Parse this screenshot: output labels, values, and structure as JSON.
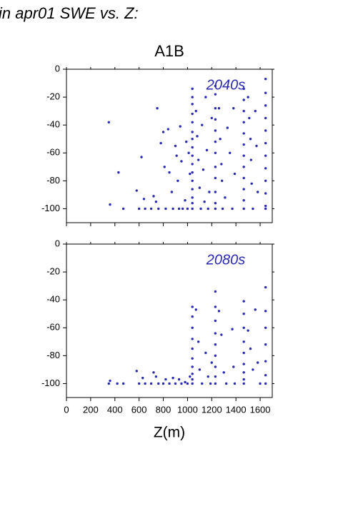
{
  "title": "in apr01 SWE vs. Z:",
  "subtitle": "A1B",
  "xlabel": "Z(m)",
  "chart_data": [
    {
      "type": "scatter",
      "annotation": "2040s",
      "color": "#2a2ab0",
      "xlim": [
        0,
        1700
      ],
      "ylim": [
        -110,
        0
      ],
      "yticks": [
        0,
        -20,
        -40,
        -60,
        -80,
        -100
      ],
      "x": [
        350,
        360,
        430,
        470,
        580,
        600,
        620,
        640,
        650,
        700,
        720,
        740,
        750,
        760,
        780,
        800,
        810,
        820,
        840,
        850,
        870,
        880,
        900,
        910,
        920,
        930,
        940,
        950,
        960,
        980,
        990,
        1000,
        1010,
        1020,
        1040,
        1040,
        1040,
        1040,
        1040,
        1040,
        1040,
        1040,
        1040,
        1040,
        1040,
        1040,
        1040,
        1040,
        1040,
        1040,
        1070,
        1080,
        1090,
        1100,
        1110,
        1120,
        1130,
        1140,
        1150,
        1160,
        1170,
        1180,
        1200,
        1230,
        1230,
        1230,
        1230,
        1230,
        1230,
        1230,
        1230,
        1230,
        1230,
        1230,
        1230,
        1260,
        1270,
        1280,
        1285,
        1290,
        1310,
        1330,
        1350,
        1370,
        1380,
        1390,
        1465,
        1465,
        1465,
        1465,
        1465,
        1465,
        1465,
        1465,
        1465,
        1465,
        1465,
        1465,
        1500,
        1510,
        1520,
        1525,
        1530,
        1540,
        1560,
        1570,
        1580,
        1645,
        1645,
        1645,
        1645,
        1645,
        1645,
        1645,
        1645,
        1645,
        1645,
        1645,
        1645
      ],
      "y": [
        -38,
        -97,
        -74,
        -100,
        -87,
        -100,
        -63,
        -93,
        -100,
        -100,
        -91,
        -95,
        -28,
        -100,
        -53,
        -45,
        -70,
        -100,
        -43,
        -74,
        -88,
        -100,
        -55,
        -62,
        -80,
        -100,
        -41,
        -66,
        -100,
        -94,
        -52,
        -100,
        -60,
        -75,
        -14,
        -20,
        -25,
        -32,
        -38,
        -45,
        -50,
        -56,
        -62,
        -68,
        -74,
        -80,
        -86,
        -92,
        -96,
        -100,
        -30,
        -48,
        -65,
        -85,
        -100,
        -40,
        -72,
        -95,
        -20,
        -58,
        -100,
        -88,
        -35,
        -12,
        -18,
        -28,
        -36,
        -44,
        -52,
        -60,
        -70,
        -78,
        -88,
        -96,
        -100,
        -28,
        -50,
        -68,
        -80,
        -100,
        -92,
        -42,
        -60,
        -100,
        -28,
        -75,
        -14,
        -22,
        -30,
        -38,
        -46,
        -54,
        -62,
        -70,
        -78,
        -86,
        -94,
        -100,
        -20,
        -35,
        -50,
        -65,
        -82,
        -100,
        -30,
        -55,
        -88,
        -7,
        -17,
        -26,
        -35,
        -44,
        -53,
        -62,
        -71,
        -80,
        -89,
        -98,
        -100
      ]
    },
    {
      "type": "scatter",
      "annotation": "2080s",
      "color": "#2a2ab0",
      "xlim": [
        0,
        1700
      ],
      "ylim": [
        -110,
        0
      ],
      "yticks": [
        0,
        -20,
        -40,
        -60,
        -80,
        -100
      ],
      "xticks": [
        0,
        200,
        400,
        600,
        800,
        1000,
        1200,
        1400,
        1600
      ],
      "x": [
        350,
        360,
        420,
        470,
        580,
        600,
        630,
        650,
        700,
        720,
        740,
        760,
        800,
        820,
        850,
        880,
        900,
        930,
        950,
        980,
        1000,
        1020,
        1040,
        1040,
        1040,
        1040,
        1040,
        1040,
        1040,
        1040,
        1040,
        1040,
        1070,
        1090,
        1100,
        1120,
        1150,
        1170,
        1190,
        1200,
        1230,
        1230,
        1230,
        1230,
        1230,
        1230,
        1230,
        1230,
        1230,
        1260,
        1280,
        1300,
        1320,
        1370,
        1380,
        1390,
        1465,
        1465,
        1465,
        1465,
        1465,
        1465,
        1465,
        1465,
        1465,
        1500,
        1520,
        1540,
        1560,
        1580,
        1600,
        1645,
        1645,
        1645,
        1645,
        1645,
        1645,
        1645
      ],
      "y": [
        -100,
        -98,
        -100,
        -100,
        -91,
        -100,
        -96,
        -100,
        -100,
        -92,
        -95,
        -100,
        -100,
        -97,
        -100,
        -96,
        -100,
        -97,
        -100,
        -99,
        -100,
        -95,
        -45,
        -52,
        -60,
        -68,
        -75,
        -82,
        -88,
        -93,
        -97,
        -100,
        -47,
        -70,
        -90,
        -100,
        -78,
        -95,
        -100,
        -85,
        -34,
        -45,
        -55,
        -64,
        -72,
        -80,
        -88,
        -95,
        -100,
        -48,
        -65,
        -92,
        -100,
        -61,
        -88,
        -100,
        -41,
        -50,
        -60,
        -70,
        -78,
        -86,
        -92,
        -97,
        -100,
        -62,
        -75,
        -90,
        -47,
        -85,
        -100,
        -31,
        -48,
        -60,
        -72,
        -84,
        -94,
        -100
      ]
    }
  ]
}
